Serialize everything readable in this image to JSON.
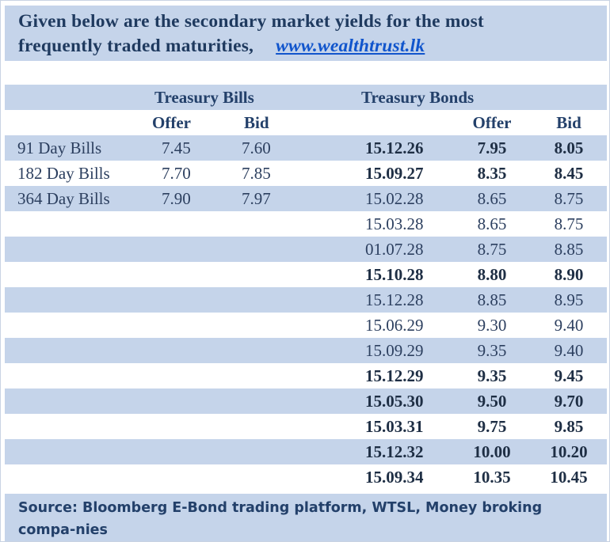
{
  "heading": {
    "line1": "Given below are the secondary market yields for the most",
    "line2": "frequently traded maturities,",
    "link": "www.wealthtrust.lk"
  },
  "sections": {
    "bills_title": "Treasury Bills",
    "bonds_title": "Treasury Bonds"
  },
  "columns": {
    "bills_offer": "Offer",
    "bills_bid": "Bid",
    "bonds_offer": "Offer",
    "bonds_bid": "Bid"
  },
  "bills": [
    {
      "label": "91 Day Bills",
      "offer": "7.45",
      "bid": "7.60"
    },
    {
      "label": "182 Day Bills",
      "offer": "7.70",
      "bid": "7.85"
    },
    {
      "label": "364 Day Bills",
      "offer": "7.90",
      "bid": "7.97"
    }
  ],
  "bonds": [
    {
      "maturity": "15.12.26",
      "offer": "7.95",
      "bid": "8.05",
      "bold": true
    },
    {
      "maturity": "15.09.27",
      "offer": "8.35",
      "bid": "8.45",
      "bold": true
    },
    {
      "maturity": "15.02.28",
      "offer": "8.65",
      "bid": "8.75",
      "bold": false
    },
    {
      "maturity": "15.03.28",
      "offer": "8.65",
      "bid": "8.75",
      "bold": false
    },
    {
      "maturity": "01.07.28",
      "offer": "8.75",
      "bid": "8.85",
      "bold": false
    },
    {
      "maturity": "15.10.28",
      "offer": "8.80",
      "bid": "8.90",
      "bold": true
    },
    {
      "maturity": "15.12.28",
      "offer": "8.85",
      "bid": "8.95",
      "bold": false
    },
    {
      "maturity": "15.06.29",
      "offer": "9.30",
      "bid": "9.40",
      "bold": false
    },
    {
      "maturity": "15.09.29",
      "offer": "9.35",
      "bid": "9.40",
      "bold": false
    },
    {
      "maturity": "15.12.29",
      "offer": "9.35",
      "bid": "9.45",
      "bold": true
    },
    {
      "maturity": "15.05.30",
      "offer": "9.50",
      "bid": "9.70",
      "bold": true
    },
    {
      "maturity": "15.03.31",
      "offer": "9.75",
      "bid": "9.85",
      "bold": true
    },
    {
      "maturity": "15.12.32",
      "offer": "10.00",
      "bid": "10.20",
      "bold": true
    },
    {
      "maturity": "15.09.34",
      "offer": "10.35",
      "bid": "10.45",
      "bold": true
    }
  ],
  "footer": {
    "source": "Source: Bloomberg E-Bond trading platform, WTSL, Money broking compa-nies"
  },
  "colors": {
    "band": "#c5d4ea",
    "heading_text": "#1f3a5f",
    "link": "#1155cc"
  }
}
